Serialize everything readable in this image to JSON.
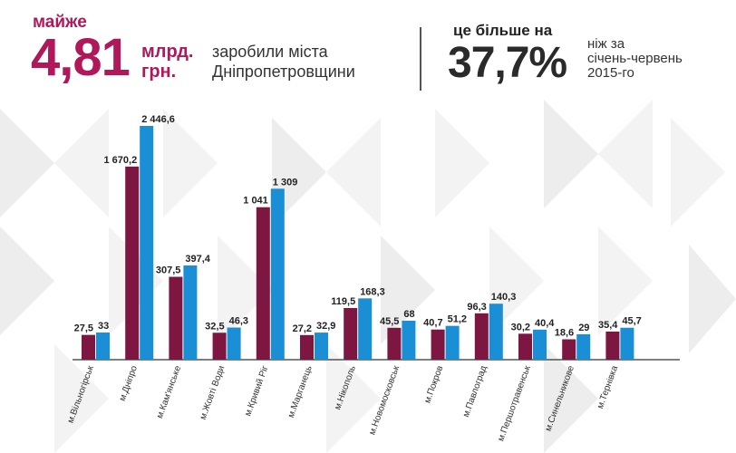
{
  "header": {
    "almost": "майже",
    "amount": "4,81",
    "unit_line1": "млрд.",
    "unit_line2": "грн.",
    "earned_line1": "заробили міста",
    "earned_line2": "Дніпропетровщини",
    "more_label": "це більше на",
    "percent": "37,7%",
    "compare_line1": "ніж за",
    "compare_line2": "січень-червень",
    "compare_line3": "2015-го"
  },
  "colors": {
    "accent": "#b0185a",
    "series_2015": "#7d1640",
    "series_2016": "#1a8fd6",
    "bg_triangles": "#ebebeb"
  },
  "chart_data": {
    "type": "bar",
    "categories": [
      "м.Вільногірськ",
      "м.Дніпро",
      "м.Кам'янське",
      "м.Жовті Води",
      "м.Кривий Ріг",
      "м.Марганець",
      "м.Нікополь",
      "м.Новомосковськ",
      "м.Покров",
      "м.Павлоград",
      "м.Першотравенськ",
      "м.Синельникове",
      "м.Тернівка"
    ],
    "series": [
      {
        "color": "#7d1640",
        "values": [
          27.5,
          1670.2,
          307.5,
          32.5,
          1041,
          27.2,
          119.5,
          45.5,
          40.7,
          96.3,
          30.2,
          18.6,
          35.4
        ],
        "labels": [
          "27,5",
          "1 670,2",
          "307,5",
          "32,5",
          "1 041",
          "27,2",
          "119,5",
          "45,5",
          "40,7",
          "96,3",
          "30,2",
          "18,6",
          "35,4"
        ]
      },
      {
        "color": "#1a8fd6",
        "values": [
          33,
          2446.6,
          397.4,
          46.3,
          1309,
          32.9,
          168.3,
          68,
          51.2,
          140.3,
          40.4,
          29,
          45.7
        ],
        "labels": [
          "33",
          "2 446,6",
          "397,4",
          "46,3",
          "1 309",
          "32,9",
          "168,3",
          "68",
          "51,2",
          "140,3",
          "40,4",
          "29",
          "45,7"
        ]
      }
    ],
    "scale": "nonlinear",
    "grid": false,
    "legend": "none"
  }
}
